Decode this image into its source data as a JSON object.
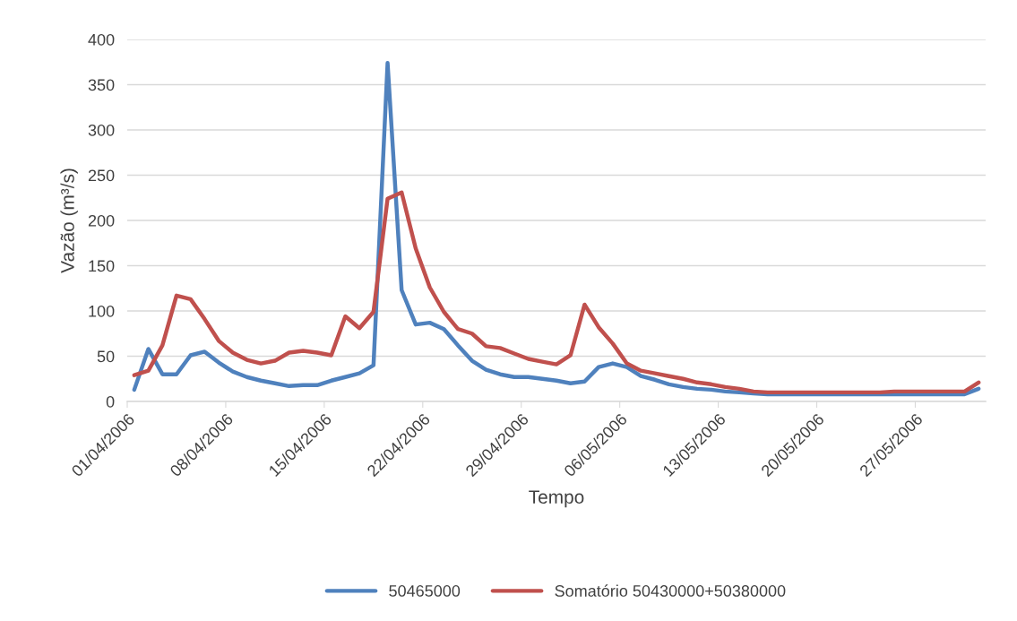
{
  "chart_data": {
    "type": "line",
    "xlabel": "Tempo",
    "ylabel": "Vazão (m³/s)",
    "x": [
      "2006-04-01T12:00",
      "2006-04-02T12:00",
      "2006-04-03T12:00",
      "2006-04-04T12:00",
      "2006-04-05T12:00",
      "2006-04-06T12:00",
      "2006-04-07T12:00",
      "2006-04-08T12:00",
      "2006-04-09T12:00",
      "2006-04-10T12:00",
      "2006-04-11T12:00",
      "2006-04-12T12:00",
      "2006-04-13T12:00",
      "2006-04-14T12:00",
      "2006-04-15T12:00",
      "2006-04-16T12:00",
      "2006-04-17T12:00",
      "2006-04-18T12:00",
      "2006-04-19T12:00",
      "2006-04-20T12:00",
      "2006-04-21T12:00",
      "2006-04-22T12:00",
      "2006-04-23T12:00",
      "2006-04-24T12:00",
      "2006-04-25T12:00",
      "2006-04-26T12:00",
      "2006-04-27T12:00",
      "2006-04-28T12:00",
      "2006-04-29T12:00",
      "2006-04-30T12:00",
      "2006-05-01T12:00",
      "2006-05-02T12:00",
      "2006-05-03T12:00",
      "2006-05-04T12:00",
      "2006-05-05T12:00",
      "2006-05-06T12:00",
      "2006-05-07T12:00",
      "2006-05-08T12:00",
      "2006-05-09T12:00",
      "2006-05-10T12:00",
      "2006-05-11T12:00",
      "2006-05-12T12:00",
      "2006-05-13T12:00",
      "2006-05-14T12:00",
      "2006-05-15T12:00",
      "2006-05-16T12:00",
      "2006-05-17T12:00",
      "2006-05-18T12:00",
      "2006-05-19T12:00",
      "2006-05-20T12:00",
      "2006-05-21T12:00",
      "2006-05-22T12:00",
      "2006-05-23T12:00",
      "2006-05-24T12:00",
      "2006-05-25T12:00",
      "2006-05-26T12:00",
      "2006-05-27T12:00",
      "2006-05-28T12:00",
      "2006-05-29T12:00",
      "2006-05-30T12:00",
      "2006-05-31T12:00"
    ],
    "series": [
      {
        "name": "50465000",
        "color": "#4f81bd",
        "values": [
          13,
          58,
          30,
          30,
          51,
          55,
          43,
          33,
          27,
          23,
          20,
          17,
          18,
          18,
          23,
          27,
          31,
          40,
          374,
          123,
          85,
          87,
          80,
          62,
          45,
          35,
          30,
          27,
          27,
          25,
          23,
          20,
          22,
          38,
          42,
          38,
          28,
          24,
          19,
          16,
          14,
          13,
          11,
          10,
          9,
          8,
          8,
          8,
          8,
          8,
          8,
          8,
          8,
          8,
          8,
          8,
          8,
          8,
          8,
          8,
          14
        ]
      },
      {
        "name": "Somatório 50430000+50380000",
        "color": "#c0504d",
        "values": [
          29,
          34,
          62,
          117,
          113,
          91,
          67,
          54,
          46,
          42,
          45,
          54,
          56,
          54,
          51,
          94,
          81,
          99,
          224,
          231,
          169,
          126,
          99,
          80,
          75,
          61,
          59,
          53,
          47,
          44,
          41,
          51,
          107,
          82,
          64,
          42,
          34,
          31,
          28,
          25,
          21,
          19,
          16,
          14,
          11,
          10,
          10,
          10,
          10,
          10,
          10,
          10,
          10,
          10,
          11,
          11,
          11,
          11,
          11,
          11,
          21
        ]
      }
    ],
    "xlim": [
      "2006-04-01",
      "2006-06-01"
    ],
    "xticks": [
      {
        "value": "2006-04-01",
        "label": "01/04/2006"
      },
      {
        "value": "2006-04-08",
        "label": "08/04/2006"
      },
      {
        "value": "2006-04-15",
        "label": "15/04/2006"
      },
      {
        "value": "2006-04-22",
        "label": "22/04/2006"
      },
      {
        "value": "2006-04-29",
        "label": "29/04/2006"
      },
      {
        "value": "2006-05-06",
        "label": "06/05/2006"
      },
      {
        "value": "2006-05-13",
        "label": "13/05/2006"
      },
      {
        "value": "2006-05-20",
        "label": "20/05/2006"
      },
      {
        "value": "2006-05-27",
        "label": "27/05/2006"
      }
    ],
    "ylim": [
      0,
      400
    ],
    "yticks": [
      0,
      50,
      100,
      150,
      200,
      250,
      300,
      350,
      400
    ],
    "grid": "y",
    "legend": "bottom",
    "marker": "none",
    "line_style": "solid"
  }
}
